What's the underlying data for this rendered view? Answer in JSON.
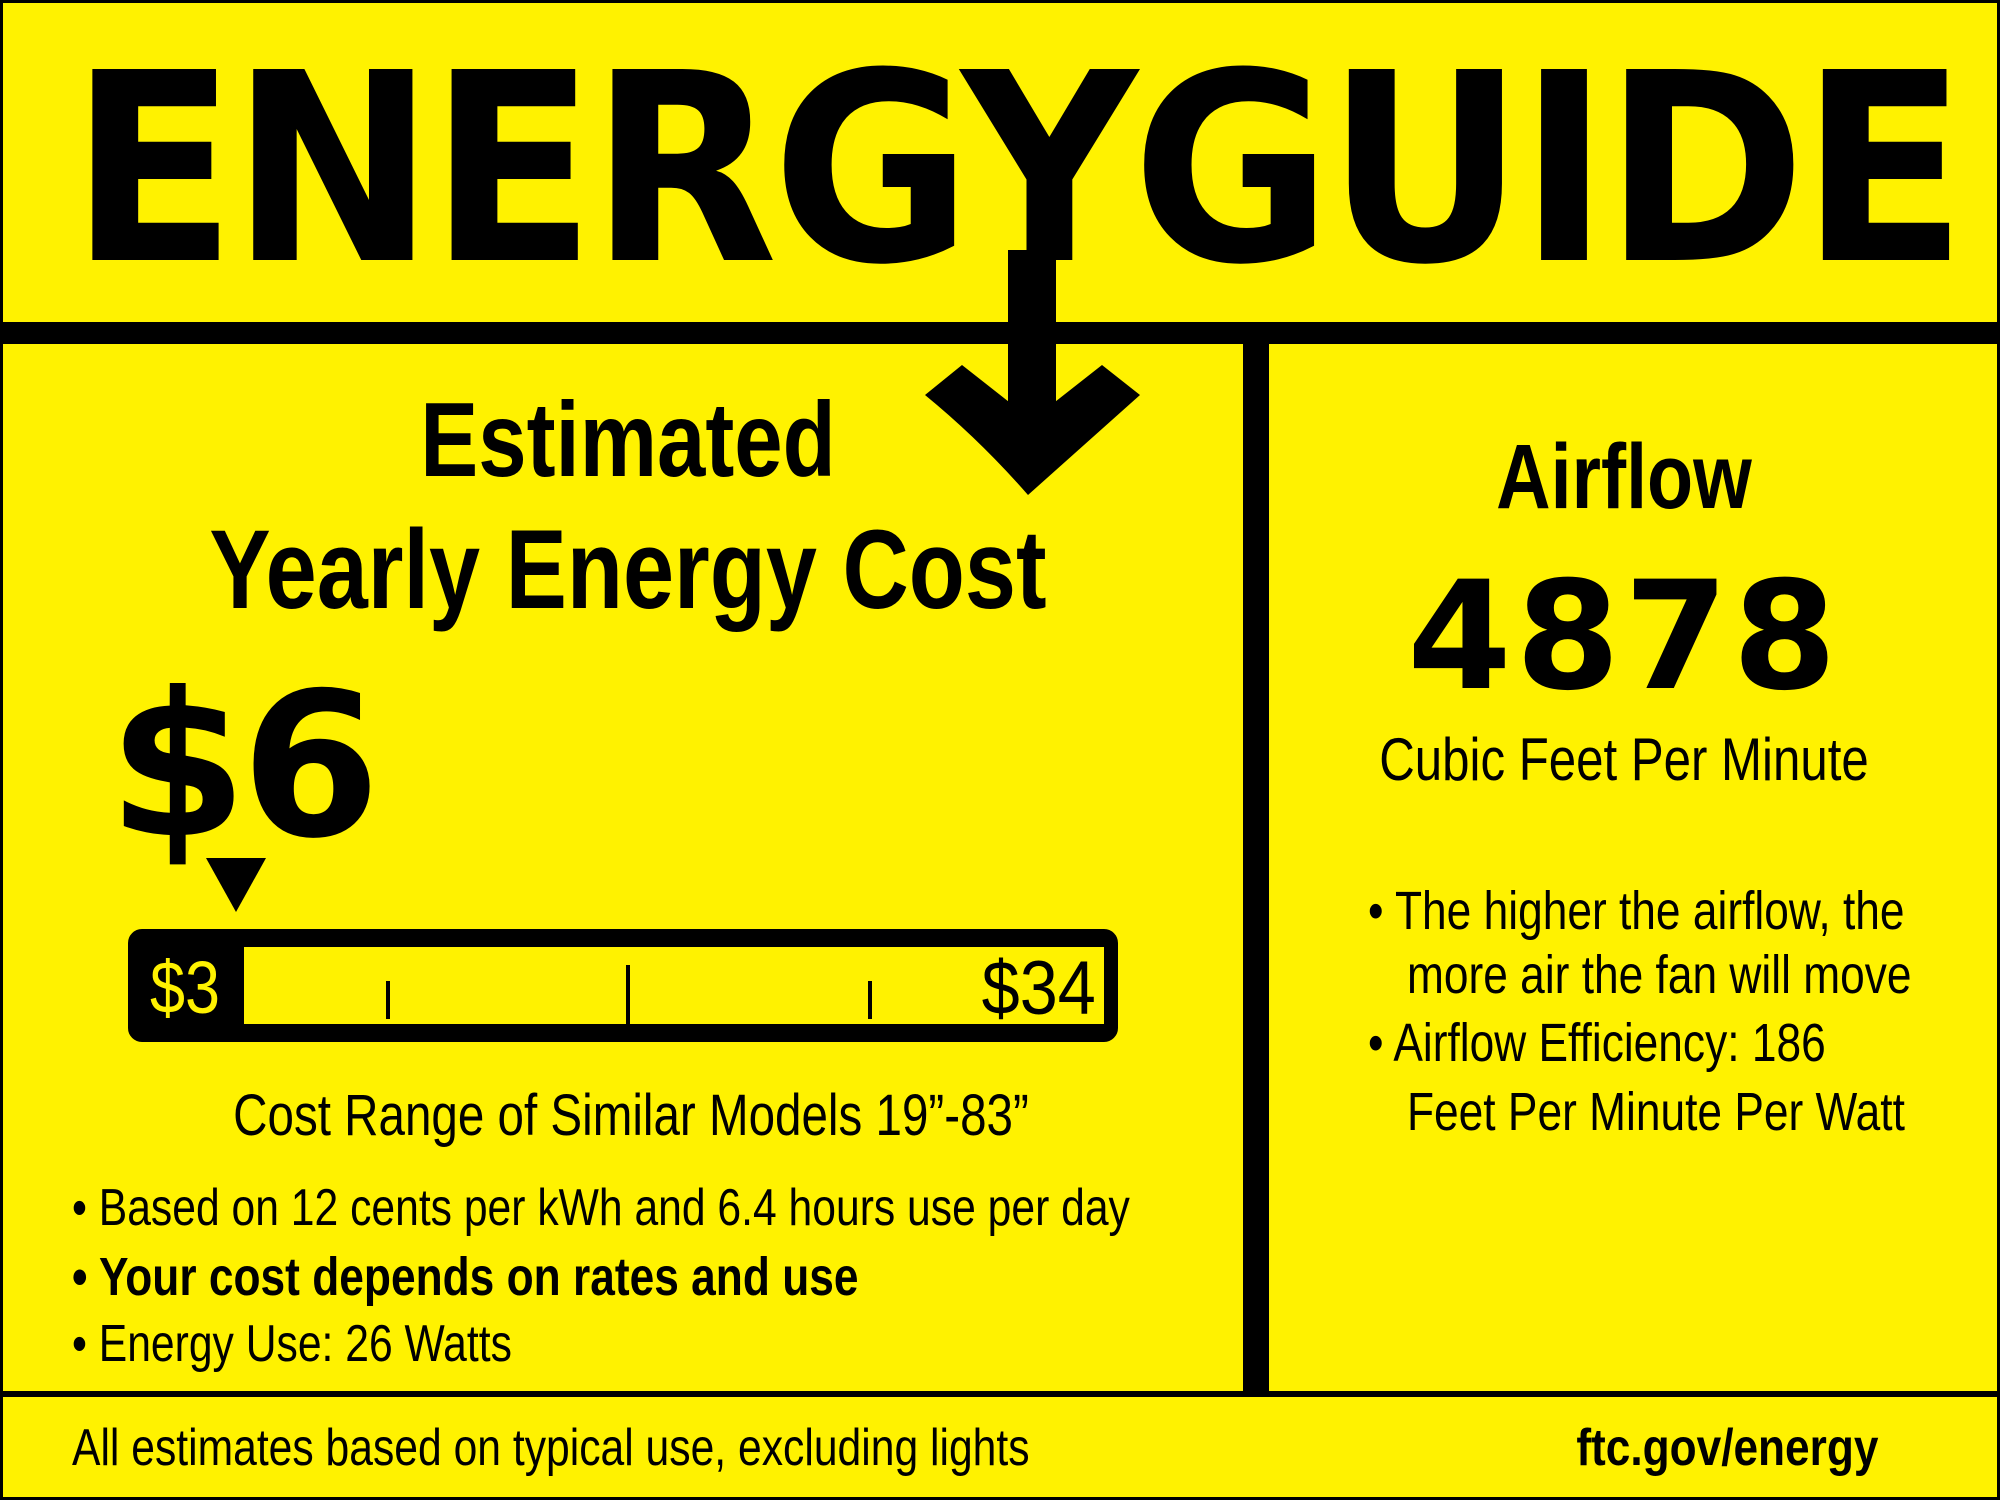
{
  "header": {
    "title": "ENERGYGUIDE"
  },
  "cost": {
    "heading_line1": "Estimated",
    "heading_line2": "Yearly Energy Cost",
    "value": "$6",
    "range_min": "$3",
    "range_max": "$34",
    "marker_value": 6,
    "range_caption": "Cost Range of Similar Models 19”-83”",
    "bullets": [
      "• Based on 12 cents per kWh and 6.4 hours use per day",
      "• Your cost depends on rates and use",
      "• Energy Use: 26 Watts"
    ]
  },
  "airflow": {
    "heading": "Airflow",
    "value": "4878",
    "unit": "Cubic Feet Per Minute",
    "bullet_lines": [
      "• The higher the airflow, the",
      "more air the fan will move",
      "• Airflow Efficiency: 186",
      "Feet Per Minute Per Watt"
    ]
  },
  "footer": {
    "note": "All estimates based on typical use, excluding lights",
    "link": "ftc.gov/energy"
  },
  "colors": {
    "background": "#fff200",
    "ink": "#000000"
  }
}
